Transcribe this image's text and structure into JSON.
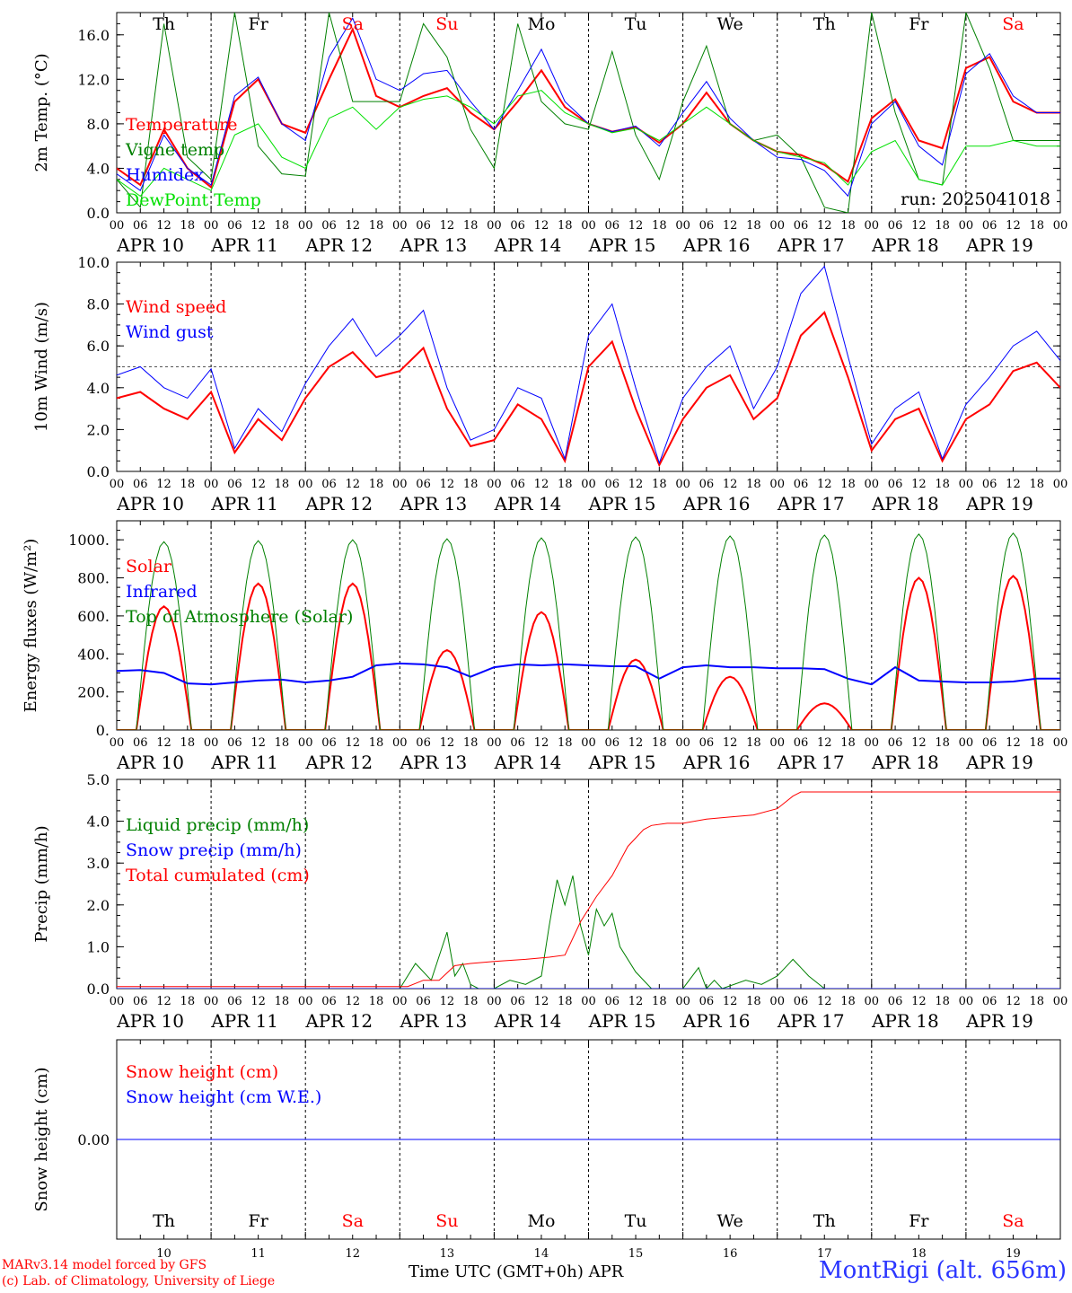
{
  "station": "MontRigi (alt. 656m)",
  "run_label": "run: 2025041018",
  "x_title": "Time UTC (GMT+0h)",
  "x_title_month": "APR",
  "credits": [
    "MARv3.14 model forced by GFS",
    "(c) Lab. of Climatology, University of Liege"
  ],
  "days": [
    {
      "dow": "Th",
      "date": "APR 10",
      "num": "10",
      "weekend": false
    },
    {
      "dow": "Fr",
      "date": "APR 11",
      "num": "11",
      "weekend": false
    },
    {
      "dow": "Sa",
      "date": "APR 12",
      "num": "12",
      "weekend": true
    },
    {
      "dow": "Su",
      "date": "APR 13",
      "num": "13",
      "weekend": true
    },
    {
      "dow": "Mo",
      "date": "APR 14",
      "num": "14",
      "weekend": false
    },
    {
      "dow": "Tu",
      "date": "APR 15",
      "num": "15",
      "weekend": false
    },
    {
      "dow": "We",
      "date": "APR 16",
      "num": "16",
      "weekend": false
    },
    {
      "dow": "Th",
      "date": "APR 17",
      "num": "17",
      "weekend": false
    },
    {
      "dow": "Fr",
      "date": "APR 18",
      "num": "18",
      "weekend": false
    },
    {
      "dow": "Sa",
      "date": "APR 19",
      "num": "19",
      "weekend": true
    }
  ],
  "hour_ticks": [
    "00",
    "06",
    "12",
    "18"
  ],
  "end_tick": "00",
  "chart_data": [
    {
      "id": "temp",
      "type": "line",
      "ylabel": "2m Temp. (°C)",
      "ylim": [
        0,
        18
      ],
      "yticks": [
        "0.0",
        "4.0",
        "8.0",
        "12.0",
        "16.0"
      ],
      "ytick_values": [
        0,
        4,
        8,
        12,
        16
      ],
      "x_unit": "hours since APR 10 00 UTC",
      "series": [
        {
          "name": "Temperature",
          "color": "#ff0000",
          "width": 2,
          "x": [
            0,
            6,
            12,
            18,
            24,
            30,
            36,
            42,
            48,
            54,
            60,
            66,
            72,
            78,
            84,
            90,
            96,
            102,
            108,
            114,
            120,
            126,
            132,
            138,
            144,
            150,
            156,
            162,
            168,
            174,
            180,
            186,
            192,
            198,
            204,
            210,
            216,
            222,
            228,
            234,
            240
          ],
          "y": [
            4.0,
            2.5,
            7.5,
            4.0,
            2.3,
            10.0,
            12.0,
            8.0,
            7.2,
            12.0,
            16.5,
            10.5,
            9.5,
            10.5,
            11.2,
            9.0,
            7.5,
            10.0,
            12.8,
            9.5,
            8.0,
            7.3,
            7.7,
            6.3,
            8.0,
            10.8,
            8.0,
            6.5,
            5.5,
            5.2,
            4.3,
            2.8,
            8.5,
            10.2,
            6.5,
            5.8,
            13.0,
            14.0,
            10.0,
            9.0,
            9.0
          ]
        },
        {
          "name": "Vigne temp",
          "color": "#008000",
          "width": 1,
          "x": [
            0,
            6,
            12,
            18,
            24,
            30,
            36,
            42,
            48,
            54,
            60,
            66,
            72,
            78,
            84,
            90,
            96,
            102,
            108,
            114,
            120,
            126,
            132,
            138,
            144,
            150,
            156,
            162,
            168,
            174,
            180,
            186,
            192,
            198,
            204,
            210,
            216,
            222,
            228,
            234,
            240
          ],
          "y": [
            3.0,
            0.5,
            17.0,
            5.0,
            3.0,
            18.0,
            6.0,
            3.5,
            3.3,
            18.0,
            10.0,
            10.0,
            10.0,
            17.0,
            14.0,
            7.5,
            4.0,
            17.0,
            10.0,
            8.0,
            7.5,
            14.5,
            7.0,
            3.0,
            10.0,
            15.0,
            8.0,
            6.5,
            7.0,
            5.0,
            0.5,
            0.0,
            18.0,
            9.0,
            3.0,
            2.5,
            18.0,
            13.0,
            6.5,
            6.5,
            6.5
          ]
        },
        {
          "name": "Humidex",
          "color": "#0000ff",
          "width": 1,
          "x": [
            0,
            6,
            12,
            18,
            24,
            30,
            36,
            42,
            48,
            54,
            60,
            66,
            72,
            78,
            84,
            90,
            96,
            102,
            108,
            114,
            120,
            126,
            132,
            138,
            144,
            150,
            156,
            162,
            168,
            174,
            180,
            186,
            192,
            198,
            204,
            210,
            216,
            222,
            228,
            234,
            240
          ],
          "y": [
            3.5,
            2.0,
            7.0,
            4.0,
            2.5,
            10.5,
            12.2,
            8.0,
            6.5,
            14.0,
            17.5,
            12.0,
            11.0,
            12.5,
            12.8,
            10.0,
            7.5,
            11.0,
            14.7,
            10.0,
            8.0,
            7.3,
            7.8,
            6.0,
            9.0,
            11.8,
            8.5,
            6.5,
            5.0,
            4.8,
            3.8,
            1.5,
            8.0,
            10.0,
            6.0,
            4.3,
            12.5,
            14.3,
            10.5,
            9.0,
            9.0
          ]
        },
        {
          "name": "DewPoint Temp",
          "color": "#00e000",
          "width": 1,
          "x": [
            0,
            6,
            12,
            18,
            24,
            30,
            36,
            42,
            48,
            54,
            60,
            66,
            72,
            78,
            84,
            90,
            96,
            102,
            108,
            114,
            120,
            126,
            132,
            138,
            144,
            150,
            156,
            162,
            168,
            174,
            180,
            186,
            192,
            198,
            204,
            210,
            216,
            222,
            228,
            234,
            240
          ],
          "y": [
            3.0,
            1.5,
            4.0,
            3.0,
            2.0,
            7.0,
            8.0,
            5.0,
            4.0,
            8.5,
            9.5,
            7.5,
            9.5,
            10.2,
            10.5,
            9.5,
            8.0,
            10.5,
            11.0,
            9.0,
            8.0,
            7.2,
            7.6,
            6.5,
            8.0,
            9.5,
            8.0,
            6.5,
            5.5,
            5.0,
            4.5,
            2.5,
            5.5,
            6.5,
            3.0,
            2.5,
            6.0,
            6.0,
            6.5,
            6.0,
            6.0
          ]
        }
      ]
    },
    {
      "id": "wind",
      "type": "line",
      "ylabel": "10m Wind (m/s)",
      "ylim": [
        0,
        10
      ],
      "yticks": [
        "0.0",
        "2.0",
        "4.0",
        "6.0",
        "8.0",
        "10.0"
      ],
      "ytick_values": [
        0,
        2,
        4,
        6,
        8,
        10
      ],
      "ref_line": 5,
      "series": [
        {
          "name": "Wind speed",
          "color": "#ff0000",
          "width": 2,
          "x": [
            0,
            6,
            12,
            18,
            24,
            30,
            36,
            42,
            48,
            54,
            60,
            66,
            72,
            78,
            84,
            90,
            96,
            102,
            108,
            114,
            120,
            126,
            132,
            138,
            144,
            150,
            156,
            162,
            168,
            174,
            180,
            186,
            192,
            198,
            204,
            210,
            216,
            222,
            228,
            234,
            240
          ],
          "y": [
            3.5,
            3.8,
            3.0,
            2.5,
            3.8,
            0.9,
            2.5,
            1.5,
            3.5,
            5.0,
            5.7,
            4.5,
            4.8,
            5.9,
            3.0,
            1.2,
            1.5,
            3.2,
            2.5,
            0.5,
            5.0,
            6.2,
            3.0,
            0.3,
            2.5,
            4.0,
            4.6,
            2.5,
            3.5,
            6.5,
            7.6,
            4.5,
            1.0,
            2.5,
            3.0,
            0.5,
            2.5,
            3.2,
            4.8,
            5.2,
            4.0
          ]
        },
        {
          "name": "Wind gust",
          "color": "#0000ff",
          "width": 1,
          "x": [
            0,
            6,
            12,
            18,
            24,
            30,
            36,
            42,
            48,
            54,
            60,
            66,
            72,
            78,
            84,
            90,
            96,
            102,
            108,
            114,
            120,
            126,
            132,
            138,
            144,
            150,
            156,
            162,
            168,
            174,
            180,
            186,
            192,
            198,
            204,
            210,
            216,
            222,
            228,
            234,
            240
          ],
          "y": [
            4.6,
            5.0,
            4.0,
            3.5,
            4.9,
            1.1,
            3.0,
            1.9,
            4.2,
            6.0,
            7.3,
            5.5,
            6.5,
            7.7,
            4.0,
            1.5,
            2.0,
            4.0,
            3.5,
            0.6,
            6.5,
            8.0,
            4.0,
            0.4,
            3.5,
            5.0,
            6.0,
            3.0,
            5.0,
            8.5,
            9.8,
            5.5,
            1.3,
            3.0,
            3.8,
            0.6,
            3.2,
            4.5,
            6.0,
            6.7,
            5.3
          ]
        }
      ]
    },
    {
      "id": "energy",
      "type": "line",
      "ylabel": "Energy fluxes (W/m²)",
      "ylim": [
        0,
        1100
      ],
      "yticks": [
        "0.",
        "200.",
        "400.",
        "600.",
        "800.",
        "1000."
      ],
      "ytick_values": [
        0,
        200,
        400,
        600,
        800,
        1000
      ],
      "series": [
        {
          "name": "Solar",
          "color": "#ff0000",
          "width": 2,
          "peaks": [
            650,
            770,
            770,
            420,
            620,
            370,
            280,
            140,
            800,
            810
          ]
        },
        {
          "name": "Infrared",
          "color": "#0000ff",
          "width": 2,
          "x": [
            0,
            6,
            12,
            18,
            24,
            30,
            36,
            42,
            48,
            54,
            60,
            66,
            72,
            78,
            84,
            90,
            96,
            102,
            108,
            114,
            120,
            126,
            132,
            138,
            144,
            150,
            156,
            162,
            168,
            174,
            180,
            186,
            192,
            198,
            204,
            210,
            216,
            222,
            228,
            234,
            240
          ],
          "y": [
            310,
            315,
            300,
            245,
            240,
            250,
            260,
            265,
            250,
            260,
            280,
            340,
            350,
            345,
            330,
            280,
            330,
            345,
            340,
            345,
            340,
            335,
            335,
            270,
            330,
            340,
            330,
            330,
            325,
            325,
            320,
            270,
            240,
            330,
            260,
            255,
            250,
            250,
            255,
            270,
            270
          ]
        },
        {
          "name": "Top of Atmosphere (Solar)",
          "color": "#008000",
          "width": 1,
          "peaks": [
            990,
            995,
            1000,
            1005,
            1010,
            1015,
            1020,
            1025,
            1030,
            1035
          ]
        }
      ]
    },
    {
      "id": "precip",
      "type": "line",
      "ylabel": "Precip (mm/h)",
      "ylim": [
        0,
        5
      ],
      "yticks": [
        "0.0",
        "1.0",
        "2.0",
        "3.0",
        "4.0",
        "5.0"
      ],
      "ytick_values": [
        0,
        1,
        2,
        3,
        4,
        5
      ],
      "series": [
        {
          "name": "Liquid precip (mm/h)",
          "color": "#008000",
          "width": 1,
          "x": [
            0,
            72,
            76,
            80,
            84,
            86,
            88,
            90,
            92,
            96,
            100,
            104,
            108,
            110,
            112,
            114,
            116,
            118,
            120,
            122,
            124,
            126,
            128,
            132,
            136,
            140,
            144,
            148,
            150,
            152,
            154,
            160,
            164,
            168,
            170,
            172,
            174,
            176,
            180,
            240
          ],
          "y": [
            0,
            0,
            0.6,
            0.2,
            1.35,
            0.3,
            0.6,
            0.1,
            0,
            0,
            0.2,
            0.1,
            0.3,
            1.5,
            2.6,
            2.0,
            2.7,
            1.5,
            0.8,
            1.9,
            1.5,
            1.8,
            1.0,
            0.4,
            0,
            0,
            0,
            0.5,
            0,
            0.2,
            0,
            0.2,
            0.1,
            0.3,
            0.5,
            0.7,
            0.5,
            0.3,
            0,
            0
          ]
        },
        {
          "name": "Snow precip (mm/h)",
          "color": "#0000ff",
          "width": 1,
          "x": [
            0,
            240
          ],
          "y": [
            0,
            0
          ]
        },
        {
          "name": "Total cumulated (cm)",
          "color": "#ff0000",
          "width": 1,
          "x": [
            0,
            74,
            78,
            82,
            86,
            90,
            96,
            104,
            110,
            114,
            118,
            122,
            126,
            130,
            134,
            136,
            140,
            144,
            150,
            156,
            162,
            168,
            172,
            174,
            240
          ],
          "y": [
            0.05,
            0.05,
            0.2,
            0.2,
            0.55,
            0.6,
            0.65,
            0.7,
            0.75,
            0.8,
            1.6,
            2.2,
            2.7,
            3.4,
            3.8,
            3.9,
            3.95,
            3.95,
            4.05,
            4.1,
            4.15,
            4.3,
            4.6,
            4.7,
            4.7
          ]
        }
      ]
    },
    {
      "id": "snow",
      "type": "line",
      "ylabel": "Snow height (cm)",
      "ylim": [
        -1,
        1
      ],
      "yticks": [
        "0.00"
      ],
      "ytick_values": [
        0
      ],
      "series": [
        {
          "name": "Snow height (cm)",
          "color": "#ff0000",
          "width": 1,
          "x": [
            0,
            240
          ],
          "y": [
            0,
            0
          ]
        },
        {
          "name": "Snow height (cm W.E.)",
          "color": "#0000ff",
          "width": 1,
          "x": [
            0,
            240
          ],
          "y": [
            0,
            0
          ]
        }
      ]
    }
  ]
}
